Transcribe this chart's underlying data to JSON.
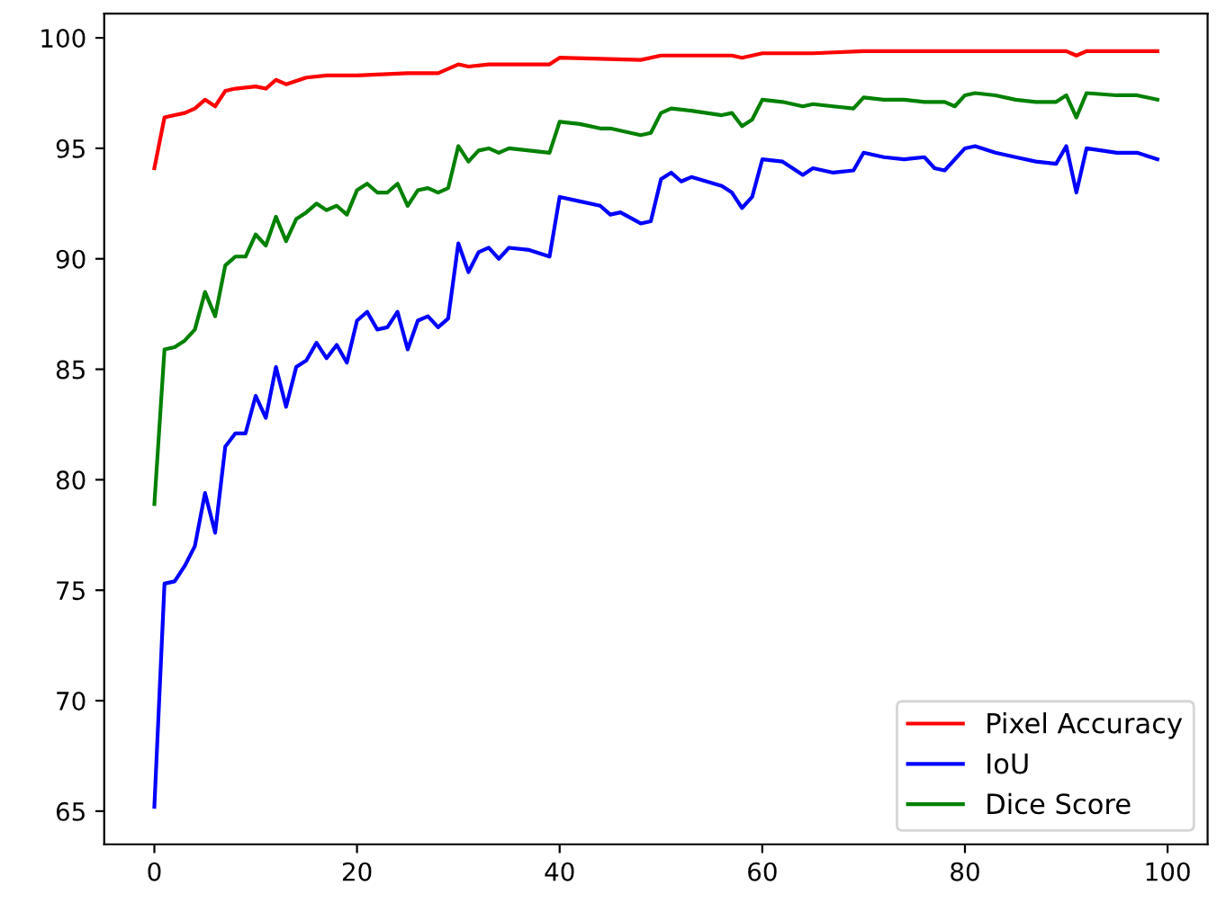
{
  "chart_data": {
    "type": "line",
    "xlim": [
      -4.95,
      103.95
    ],
    "ylim": [
      63.5,
      101.1
    ],
    "xticks": [
      0,
      20,
      40,
      60,
      80,
      100
    ],
    "yticks": [
      65,
      70,
      75,
      80,
      85,
      90,
      95,
      100
    ],
    "grid": false,
    "legend": "bottom right",
    "marker": "none",
    "line_style": "solid",
    "series": [
      {
        "name": "Pixel Accuracy",
        "color": "#ff0000",
        "x": [
          0,
          1,
          2,
          3,
          4,
          5,
          6,
          7,
          8,
          10,
          11,
          12,
          13,
          15,
          17,
          20,
          25,
          28,
          30,
          31,
          33,
          39,
          40,
          48,
          50,
          57,
          58,
          60,
          65,
          70,
          80,
          90,
          91,
          92,
          99
        ],
        "values": [
          94.1,
          96.4,
          96.5,
          96.6,
          96.8,
          97.2,
          96.9,
          97.6,
          97.7,
          97.8,
          97.7,
          98.1,
          97.9,
          98.2,
          98.3,
          98.3,
          98.4,
          98.4,
          98.8,
          98.7,
          98.8,
          98.8,
          99.1,
          99.0,
          99.2,
          99.2,
          99.1,
          99.3,
          99.3,
          99.4,
          99.4,
          99.4,
          99.2,
          99.4,
          99.4
        ]
      },
      {
        "name": "IoU",
        "color": "#0000ff",
        "x": [
          0,
          1,
          2,
          3,
          4,
          5,
          6,
          7,
          8,
          9,
          10,
          11,
          12,
          13,
          14,
          15,
          16,
          17,
          18,
          19,
          20,
          21,
          22,
          23,
          24,
          25,
          26,
          27,
          28,
          29,
          30,
          31,
          32,
          33,
          34,
          35,
          37,
          39,
          40,
          42,
          44,
          45,
          46,
          48,
          49,
          50,
          51,
          52,
          53,
          56,
          57,
          58,
          59,
          60,
          62,
          64,
          65,
          67,
          69,
          70,
          72,
          74,
          76,
          77,
          78,
          80,
          81,
          83,
          85,
          87,
          89,
          90,
          91,
          92,
          95,
          97,
          99
        ],
        "values": [
          65.2,
          75.3,
          75.4,
          76.1,
          77.0,
          79.4,
          77.6,
          81.5,
          82.1,
          82.1,
          83.8,
          82.8,
          85.1,
          83.3,
          85.1,
          85.4,
          86.2,
          85.5,
          86.1,
          85.3,
          87.2,
          87.6,
          86.8,
          86.9,
          87.6,
          85.9,
          87.2,
          87.4,
          86.9,
          87.3,
          90.7,
          89.4,
          90.3,
          90.5,
          90.0,
          90.5,
          90.4,
          90.1,
          92.8,
          92.6,
          92.4,
          92.0,
          92.1,
          91.6,
          91.7,
          93.6,
          93.9,
          93.5,
          93.7,
          93.3,
          93.0,
          92.3,
          92.8,
          94.5,
          94.4,
          93.8,
          94.1,
          93.9,
          94.0,
          94.8,
          94.6,
          94.5,
          94.6,
          94.1,
          94.0,
          95.0,
          95.1,
          94.8,
          94.6,
          94.4,
          94.3,
          95.1,
          93.0,
          95.0,
          94.8,
          94.8,
          94.5
        ]
      },
      {
        "name": "Dice Score",
        "color": "#008000",
        "x": [
          0,
          1,
          2,
          3,
          4,
          5,
          6,
          7,
          8,
          9,
          10,
          11,
          12,
          13,
          14,
          15,
          16,
          17,
          18,
          19,
          20,
          21,
          22,
          23,
          24,
          25,
          26,
          27,
          28,
          29,
          30,
          31,
          32,
          33,
          34,
          35,
          37,
          39,
          40,
          42,
          44,
          45,
          47,
          48,
          49,
          50,
          51,
          53,
          56,
          57,
          58,
          59,
          60,
          62,
          64,
          65,
          67,
          69,
          70,
          72,
          74,
          76,
          78,
          79,
          80,
          81,
          83,
          85,
          87,
          89,
          90,
          91,
          92,
          95,
          97,
          99
        ],
        "values": [
          78.9,
          85.9,
          86.0,
          86.3,
          86.8,
          88.5,
          87.4,
          89.7,
          90.1,
          90.1,
          91.1,
          90.6,
          91.9,
          90.8,
          91.8,
          92.1,
          92.5,
          92.2,
          92.4,
          92.0,
          93.1,
          93.4,
          93.0,
          93.0,
          93.4,
          92.4,
          93.1,
          93.2,
          93.0,
          93.2,
          95.1,
          94.4,
          94.9,
          95.0,
          94.8,
          95.0,
          94.9,
          94.8,
          96.2,
          96.1,
          95.9,
          95.9,
          95.7,
          95.6,
          95.7,
          96.6,
          96.8,
          96.7,
          96.5,
          96.6,
          96.0,
          96.3,
          97.2,
          97.1,
          96.9,
          97.0,
          96.9,
          96.8,
          97.3,
          97.2,
          97.2,
          97.1,
          97.1,
          96.9,
          97.4,
          97.5,
          97.4,
          97.2,
          97.1,
          97.1,
          97.4,
          96.4,
          97.5,
          97.4,
          97.4,
          97.2
        ]
      }
    ]
  }
}
